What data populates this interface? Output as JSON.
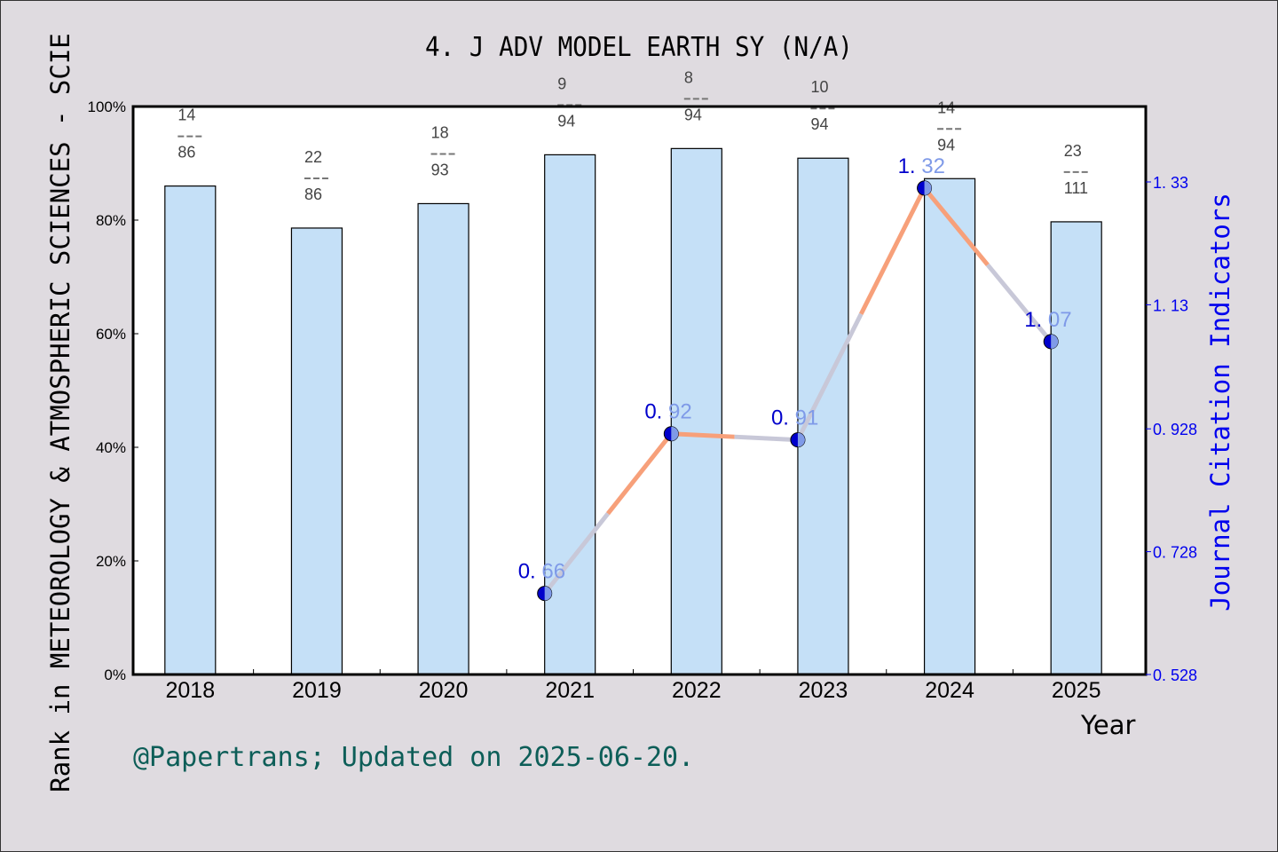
{
  "title": "4. J ADV MODEL EARTH SY (N/A)",
  "left_axis_label": "Rank in METEOROLOGY & ATMOSPHERIC SCIENCES - SCIE",
  "right_axis_label": "Journal Citation Indicators",
  "x_axis_label": "Year",
  "footer": "@Papertrans; Updated on 2025-06-20.",
  "colors": {
    "background": "#dfdbe0",
    "plot_bg": "#ffffff",
    "bar_fill": "#c5e0f7",
    "line_up": "#f7a07a",
    "line_down": "#c8c8d8",
    "marker": "#0000cc",
    "right_axis": "#0000ee",
    "footer": "#0d5e58"
  },
  "chart_data": [
    {
      "type": "bar",
      "title": "4. J ADV MODEL EARTH SY (N/A)",
      "xlabel": "Year",
      "ylabel": "Rank in METEOROLOGY & ATMOSPHERIC SCIENCES - SCIE",
      "categories": [
        "2018",
        "2019",
        "2020",
        "2021",
        "2022",
        "2023",
        "2024",
        "2025"
      ],
      "values": [
        86.0,
        78.6,
        82.9,
        91.5,
        92.6,
        90.9,
        87.3,
        79.7
      ],
      "rank_labels": [
        {
          "rank": "14",
          "total": "86"
        },
        {
          "rank": "22",
          "total": "86"
        },
        {
          "rank": "18",
          "total": "93"
        },
        {
          "rank": "9",
          "total": "94"
        },
        {
          "rank": "8",
          "total": "94"
        },
        {
          "rank": "10",
          "total": "94"
        },
        {
          "rank": "14",
          "total": "94"
        },
        {
          "rank": "23",
          "total": "111"
        }
      ],
      "ylim": [
        0,
        100
      ],
      "yticks": [
        "0%",
        "20%",
        "40%",
        "60%",
        "80%",
        "100%"
      ],
      "grid": false
    },
    {
      "type": "line",
      "ylabel": "Journal Citation Indicators",
      "x": [
        "2021",
        "2022",
        "2023",
        "2024",
        "2025"
      ],
      "values": [
        0.66,
        0.92,
        0.91,
        1.32,
        1.07
      ],
      "labels": [
        "0.66",
        "0.92",
        "0.91",
        "1.32",
        "1.07"
      ],
      "ylim": [
        0.528,
        1.33
      ],
      "yticks": [
        "0.528",
        "0.728",
        "0.928",
        "1.13",
        "1.33"
      ]
    }
  ]
}
